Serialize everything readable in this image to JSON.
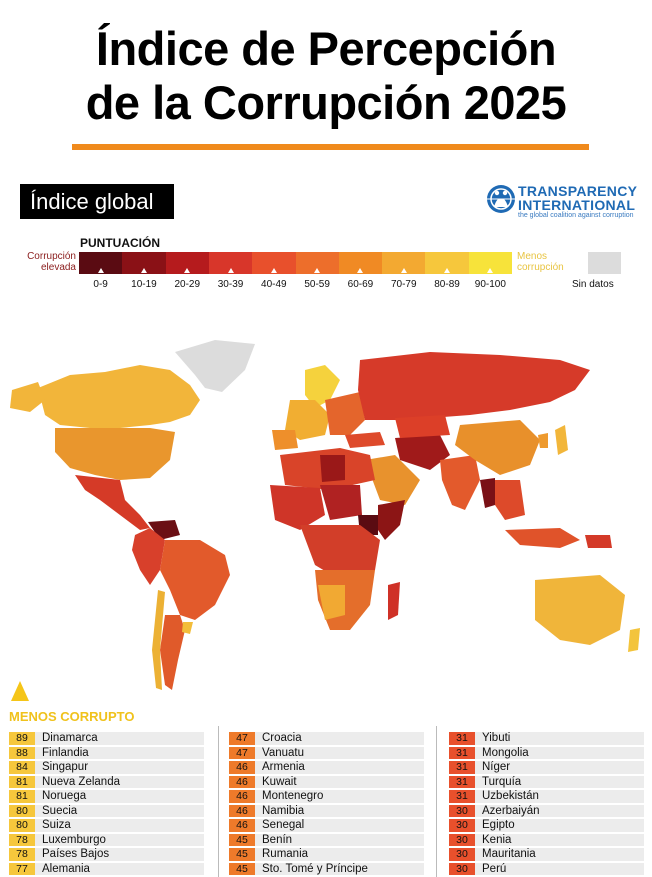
{
  "header": {
    "title_line1": "Índice de Percepción",
    "title_line2": "de la Corrupción 2025"
  },
  "badge": {
    "label": "Índice global"
  },
  "logo": {
    "line1": "TRANSPARENCY",
    "line2": "INTERNATIONAL",
    "tagline": "the global coalition against corruption",
    "icon": "globe-people-icon"
  },
  "legend": {
    "title": "PUNTUACIÓN",
    "left_label": "Corrupción elevada",
    "right_label": "Menos corrupción",
    "no_data_label": "Sin datos",
    "ranges": [
      "0-9",
      "10-19",
      "20-29",
      "30-39",
      "40-49",
      "50-59",
      "60-69",
      "70-79",
      "80-89",
      "90-100"
    ],
    "colors": [
      "#5a0b12",
      "#8a1116",
      "#b51b1d",
      "#d8362a",
      "#e8502c",
      "#ed6e2b",
      "#f08a24",
      "#f3a931",
      "#f6c73c",
      "#f7e33a"
    ],
    "no_data_color": "#dcdcdc"
  },
  "ranking": {
    "heading": "MENOS CORRUPTO",
    "columns": [
      [
        {
          "score": "89",
          "country": "Dinamarca"
        },
        {
          "score": "88",
          "country": "Finlandia"
        },
        {
          "score": "84",
          "country": "Singapur"
        },
        {
          "score": "81",
          "country": "Nueva Zelanda"
        },
        {
          "score": "81",
          "country": "Noruega"
        },
        {
          "score": "80",
          "country": "Suecia"
        },
        {
          "score": "80",
          "country": "Suiza"
        },
        {
          "score": "78",
          "country": "Luxemburgo"
        },
        {
          "score": "78",
          "country": "Países Bajos"
        },
        {
          "score": "77",
          "country": "Alemania"
        }
      ],
      [
        {
          "score": "47",
          "country": "Croacia"
        },
        {
          "score": "47",
          "country": "Vanuatu"
        },
        {
          "score": "46",
          "country": "Armenia"
        },
        {
          "score": "46",
          "country": "Kuwait"
        },
        {
          "score": "46",
          "country": "Montenegro"
        },
        {
          "score": "46",
          "country": "Namibia"
        },
        {
          "score": "46",
          "country": "Senegal"
        },
        {
          "score": "45",
          "country": "Benín"
        },
        {
          "score": "45",
          "country": "Rumania"
        },
        {
          "score": "45",
          "country": "Sto. Tomé y Príncipe"
        }
      ],
      [
        {
          "score": "31",
          "country": "Yibuti"
        },
        {
          "score": "31",
          "country": "Mongolia"
        },
        {
          "score": "31",
          "country": "Níger"
        },
        {
          "score": "31",
          "country": "Turquía"
        },
        {
          "score": "31",
          "country": "Uzbekistán"
        },
        {
          "score": "30",
          "country": "Azerbaiyán"
        },
        {
          "score": "30",
          "country": "Egipto"
        },
        {
          "score": "30",
          "country": "Kenia"
        },
        {
          "score": "30",
          "country": "Mauritania"
        },
        {
          "score": "30",
          "country": "Perú"
        }
      ]
    ]
  }
}
